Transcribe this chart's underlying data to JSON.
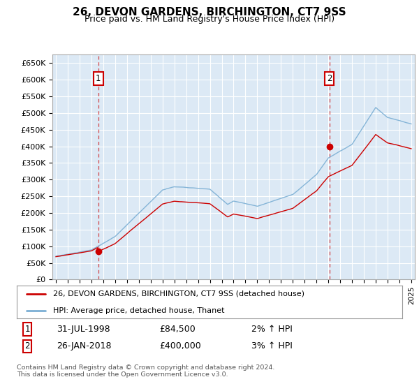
{
  "title": "26, DEVON GARDENS, BIRCHINGTON, CT7 9SS",
  "subtitle": "Price paid vs. HM Land Registry's House Price Index (HPI)",
  "ylabel_ticks": [
    "£0",
    "£50K",
    "£100K",
    "£150K",
    "£200K",
    "£250K",
    "£300K",
    "£350K",
    "£400K",
    "£450K",
    "£500K",
    "£550K",
    "£600K",
    "£650K"
  ],
  "ytick_values": [
    0,
    50000,
    100000,
    150000,
    200000,
    250000,
    300000,
    350000,
    400000,
    450000,
    500000,
    550000,
    600000,
    650000
  ],
  "ylim": [
    0,
    675000
  ],
  "xlim_start": 1994.7,
  "xlim_end": 2025.3,
  "background_color": "#ffffff",
  "plot_bg_color": "#dce9f5",
  "grid_color": "#ffffff",
  "sale1_year": 1998.58,
  "sale1_price": 84500,
  "sale2_year": 2018.08,
  "sale2_price": 400000,
  "legend_label_red": "26, DEVON GARDENS, BIRCHINGTON, CT7 9SS (detached house)",
  "legend_label_blue": "HPI: Average price, detached house, Thanet",
  "annotation1_label": "1",
  "annotation1_text": "31-JUL-1998",
  "annotation1_price": "£84,500",
  "annotation1_hpi": "2% ↑ HPI",
  "annotation2_label": "2",
  "annotation2_text": "26-JAN-2018",
  "annotation2_price": "£400,000",
  "annotation2_hpi": "3% ↑ HPI",
  "footer": "Contains HM Land Registry data © Crown copyright and database right 2024.\nThis data is licensed under the Open Government Licence v3.0.",
  "red_color": "#cc0000",
  "blue_color": "#7bafd4",
  "anno_box_color": "#cc0000"
}
